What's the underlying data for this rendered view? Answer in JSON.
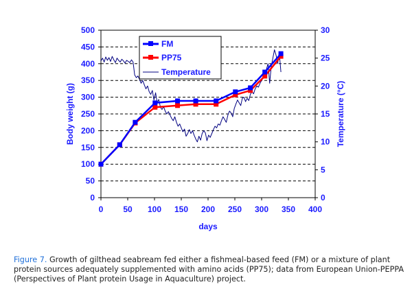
{
  "chart_data": {
    "type": "line",
    "title": "",
    "xlabel": "days",
    "ylabel": "Body weight (g)",
    "y2label": "Temperature (°C)",
    "xlim": [
      0,
      400
    ],
    "ylim": [
      0,
      500
    ],
    "y2lim": [
      0,
      30
    ],
    "xticks": [
      "0",
      "50",
      "100",
      "150",
      "200",
      "250",
      "300",
      "350",
      "400"
    ],
    "yticks": [
      "0",
      "50",
      "100",
      "150",
      "200",
      "250",
      "300",
      "350",
      "400",
      "450",
      "500"
    ],
    "y2ticks": [
      "0",
      "5",
      "10",
      "15",
      "20",
      "25",
      "30"
    ],
    "grid": "horizontal dashed",
    "legend_position": "top-center",
    "series": [
      {
        "name": "FM",
        "axis": "left",
        "color": "#0000ff",
        "marker": "square",
        "x": [
          0,
          35,
          64,
          101,
          143,
          177,
          215,
          251,
          279,
          306,
          336
        ],
        "y": [
          100,
          158,
          225,
          283,
          289,
          289,
          289,
          316,
          328,
          375,
          430
        ]
      },
      {
        "name": "PP75",
        "axis": "left",
        "color": "#ff0000",
        "marker": "square",
        "x": [
          0,
          35,
          64,
          101,
          143,
          177,
          215,
          251,
          279,
          306,
          336
        ],
        "y": [
          100,
          158,
          223,
          270,
          275,
          279,
          279,
          307,
          320,
          363,
          422
        ]
      },
      {
        "name": "Temperature",
        "axis": "right",
        "color": "#000080",
        "marker": "none",
        "x": [
          0,
          3,
          6,
          9,
          12,
          15,
          18,
          21,
          24,
          27,
          30,
          33,
          36,
          39,
          42,
          45,
          48,
          51,
          54,
          57,
          60,
          63,
          66,
          69,
          72,
          75,
          78,
          81,
          84,
          87,
          90,
          93,
          96,
          99,
          102,
          105,
          108,
          111,
          114,
          117,
          120,
          123,
          126,
          129,
          132,
          135,
          138,
          141,
          144,
          147,
          150,
          153,
          156,
          159,
          162,
          165,
          168,
          171,
          174,
          177,
          180,
          183,
          186,
          189,
          192,
          195,
          198,
          201,
          204,
          207,
          210,
          213,
          216,
          219,
          222,
          225,
          228,
          231,
          234,
          237,
          240,
          243,
          246,
          249,
          252,
          255,
          258,
          261,
          264,
          267,
          270,
          273,
          276,
          279,
          282,
          285,
          288,
          291,
          294,
          297,
          300,
          303,
          306,
          309,
          312,
          315,
          318,
          321,
          324,
          327,
          330,
          333,
          336
        ],
        "y": [
          24.5,
          25.0,
          24.3,
          25.2,
          24.6,
          25.1,
          24.4,
          25.3,
          24.7,
          24.2,
          25.0,
          24.6,
          24.3,
          24.8,
          24.5,
          24.1,
          24.6,
          24.4,
          24.2,
          24.7,
          24.3,
          22.0,
          21.5,
          21.8,
          21.2,
          20.5,
          21.0,
          20.2,
          19.5,
          20.0,
          19.0,
          18.5,
          19.2,
          17.5,
          18.8,
          17.0,
          17.6,
          16.2,
          15.8,
          16.3,
          15.5,
          15.0,
          15.4,
          14.8,
          14.2,
          13.8,
          14.5,
          13.5,
          12.8,
          13.2,
          12.5,
          11.8,
          12.3,
          11.0,
          11.5,
          12.2,
          11.5,
          12.0,
          11.2,
          10.5,
          10.0,
          11.0,
          10.3,
          11.5,
          12.0,
          11.6,
          10.2,
          11.2,
          10.8,
          11.5,
          12.2,
          12.8,
          12.5,
          13.2,
          13.0,
          13.8,
          14.5,
          14.0,
          13.5,
          14.8,
          15.5,
          15.2,
          14.5,
          16.0,
          16.8,
          17.5,
          17.0,
          16.5,
          17.8,
          18.0,
          17.2,
          17.8,
          17.4,
          18.5,
          19.0,
          18.6,
          19.5,
          20.0,
          19.8,
          20.5,
          21.0,
          21.5,
          22.2,
          23.0,
          24.0,
          20.5,
          23.5,
          25.0,
          26.5,
          25.5,
          24.0,
          26.0,
          22.5
        ]
      }
    ]
  },
  "caption": {
    "label": "Figure 7.",
    "text": " Growth of gilthead seabream fed either a fishmeal-based feed (FM) or a mixture of plant protein sources adequately supplemented with amino acids (PP75); data from European Union-PEPPA (Perspectives of Plant protein Usage in Aquaculture) project."
  }
}
